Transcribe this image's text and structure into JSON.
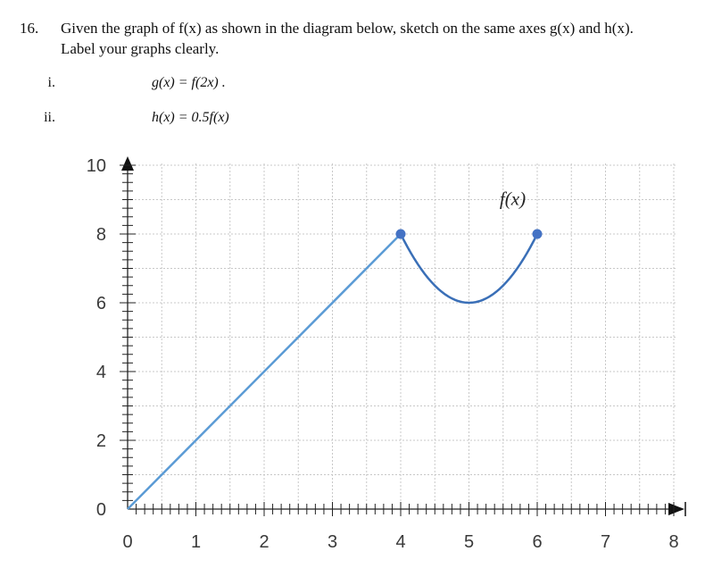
{
  "question": {
    "number": "16.",
    "line1": "Given the graph of f(x) as shown in the diagram below, sketch on the same axes g(x) and h(x).",
    "line2": "Label your graphs clearly.",
    "parts": [
      {
        "label": "i.",
        "expr": "g(x) = f(2x) ."
      },
      {
        "label": "ii.",
        "expr": "h(x) = 0.5f(x)"
      }
    ]
  },
  "chart_data": {
    "type": "line",
    "xlim": [
      0,
      8
    ],
    "ylim": [
      0,
      10
    ],
    "x_ticks": [
      "0",
      "1",
      "2",
      "3",
      "4",
      "5",
      "6",
      "7",
      "8"
    ],
    "y_ticks": [
      "0",
      "2",
      "4",
      "6",
      "8",
      "10"
    ],
    "grid": true,
    "series": [
      {
        "segment": "linear",
        "points": [
          [
            0,
            0
          ],
          [
            4,
            8
          ]
        ],
        "color": "#5b9bd5"
      },
      {
        "segment": "parabola",
        "points": [
          [
            4,
            8
          ],
          [
            5,
            6
          ],
          [
            6,
            8
          ]
        ],
        "vertex": [
          5,
          6
        ],
        "color": "#3a6fb7"
      }
    ],
    "endpoints": [
      [
        4,
        8
      ],
      [
        6,
        8
      ]
    ],
    "endpoint_color": "#4472c4",
    "annotation": "f(x)"
  }
}
